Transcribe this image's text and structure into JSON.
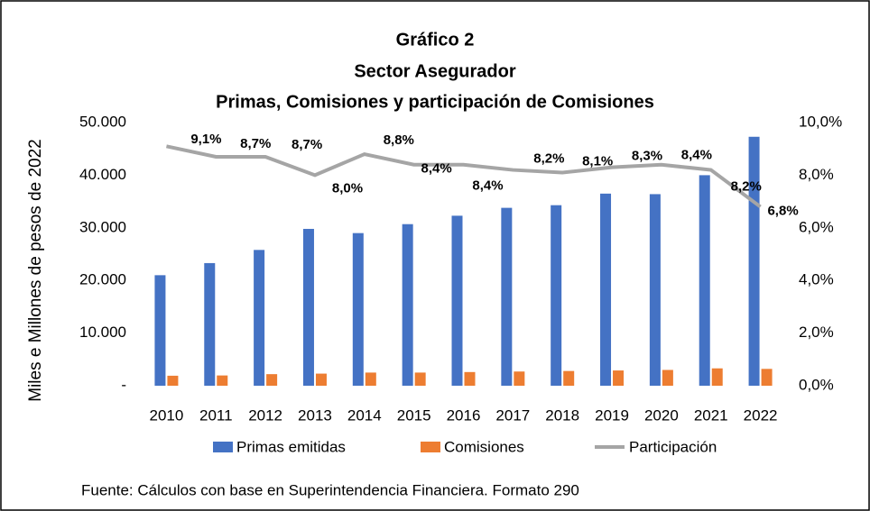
{
  "chart_data": {
    "type": "bar_line",
    "title": [
      "Gráfico 2",
      "Sector Asegurador",
      "Primas, Comisiones y participación de Comisiones"
    ],
    "y_label": "Miles e Millones de pesos de 2022",
    "source": "Fuente: Cálculos con base en Superintendencia Financiera. Formato 290",
    "categories": [
      "2010",
      "2011",
      "2012",
      "2013",
      "2014",
      "2015",
      "2016",
      "2017",
      "2018",
      "2019",
      "2020",
      "2021",
      "2022"
    ],
    "series": [
      {
        "name": "Primas emitidas",
        "color": "#4472c4",
        "kind": "bar",
        "values": [
          21000,
          23300,
          25800,
          29800,
          29000,
          30700,
          32300,
          33800,
          34300,
          36500,
          36400,
          40000,
          47300
        ]
      },
      {
        "name": "Comisiones",
        "color": "#ed7d31",
        "kind": "bar",
        "values": [
          1900,
          1950,
          2200,
          2300,
          2500,
          2500,
          2600,
          2700,
          2800,
          2900,
          3000,
          3300,
          3200
        ]
      },
      {
        "name": "Participación",
        "color": "#a5a5a5",
        "kind": "line",
        "axis": "y2",
        "values": [
          9.1,
          8.7,
          8.7,
          8.0,
          8.8,
          8.4,
          8.4,
          8.2,
          8.1,
          8.3,
          8.4,
          8.2,
          6.8
        ],
        "value_labels": [
          "9,1%",
          "8,7%",
          "8,7%",
          "8,0%",
          "8,8%",
          "8,4%",
          "8,4%",
          "8,2%",
          "8,1%",
          "8,3%",
          "8,4%",
          "8,2%",
          "6,8%"
        ]
      }
    ],
    "ylim": [
      0,
      50000
    ],
    "yticks": [
      {
        "value": 0,
        "label": "-"
      },
      {
        "value": 10000,
        "label": "10.000"
      },
      {
        "value": 20000,
        "label": "20.000"
      },
      {
        "value": 30000,
        "label": "30.000"
      },
      {
        "value": 40000,
        "label": "40.000"
      },
      {
        "value": 50000,
        "label": "50.000"
      }
    ],
    "y2lim": [
      0,
      10
    ],
    "y2ticks": [
      {
        "value": 0,
        "label": "0,0%"
      },
      {
        "value": 2,
        "label": "2,0%"
      },
      {
        "value": 4,
        "label": "4,0%"
      },
      {
        "value": 6,
        "label": "6,0%"
      },
      {
        "value": 8,
        "label": "8,0%"
      },
      {
        "value": 10,
        "label": "10,0%"
      }
    ],
    "legend": "bottom"
  }
}
